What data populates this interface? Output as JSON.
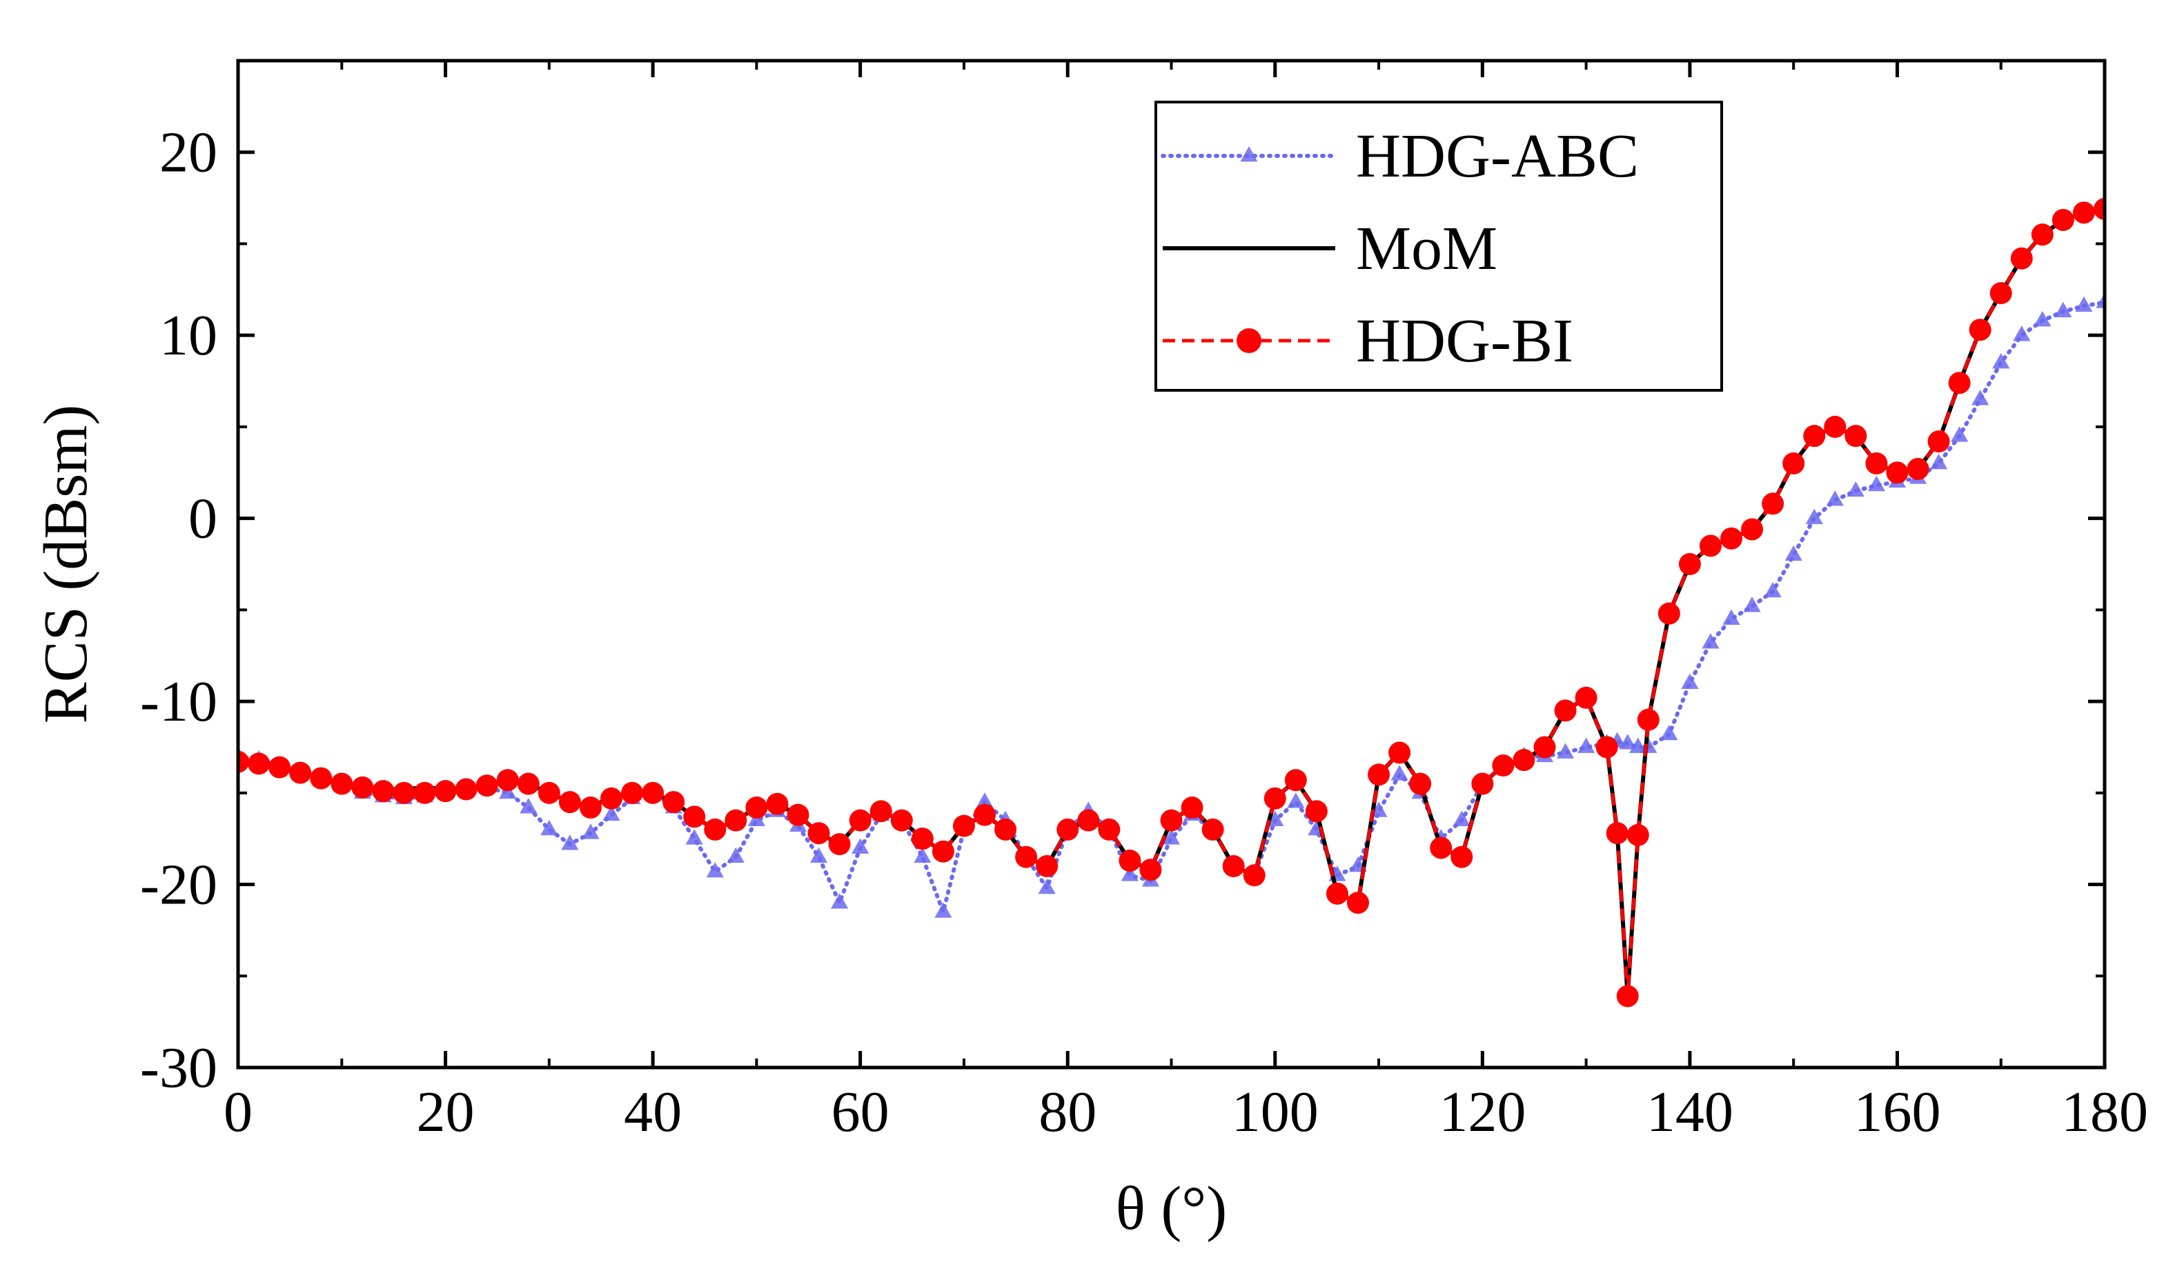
{
  "chart_data": {
    "type": "line",
    "title": "",
    "xlabel": "θ (°)",
    "ylabel": "RCS (dBsm)",
    "xlim": [
      0,
      180
    ],
    "ylim": [
      -30,
      25
    ],
    "xticks": [
      0,
      20,
      40,
      60,
      80,
      100,
      120,
      140,
      160,
      180
    ],
    "xtick_labels": [
      "0",
      "20",
      "40",
      "60",
      "80",
      "100",
      "120",
      "140",
      "160",
      "180"
    ],
    "yticks": [
      -30,
      -20,
      -10,
      0,
      10,
      20
    ],
    "ytick_labels": [
      "-30",
      "-20",
      "-10",
      "0",
      "10",
      "20"
    ],
    "grid": false,
    "legend_position": "top-right",
    "x": [
      0,
      2,
      4,
      6,
      8,
      10,
      12,
      14,
      16,
      18,
      20,
      22,
      24,
      26,
      28,
      30,
      32,
      34,
      36,
      38,
      40,
      42,
      44,
      46,
      48,
      50,
      52,
      54,
      56,
      58,
      60,
      62,
      64,
      66,
      68,
      70,
      72,
      74,
      76,
      78,
      80,
      82,
      84,
      86,
      88,
      90,
      92,
      94,
      96,
      98,
      100,
      102,
      104,
      106,
      108,
      110,
      112,
      114,
      116,
      118,
      120,
      122,
      124,
      126,
      128,
      130,
      132,
      133,
      134,
      135,
      136,
      138,
      140,
      142,
      144,
      146,
      148,
      150,
      152,
      154,
      156,
      158,
      160,
      162,
      164,
      166,
      168,
      170,
      172,
      174,
      176,
      178,
      180
    ],
    "series": [
      {
        "name": "HDG-ABC",
        "color": "#6a6af0",
        "style": "dotted-triangle",
        "values": [
          -13.0,
          -13.2,
          -13.5,
          -13.8,
          -14.2,
          -14.6,
          -15.0,
          -15.2,
          -15.3,
          -15.2,
          -15.0,
          -14.8,
          -14.7,
          -15.0,
          -15.8,
          -17.0,
          -17.8,
          -17.2,
          -16.2,
          -15.3,
          -15.0,
          -15.8,
          -17.5,
          -19.3,
          -18.5,
          -16.5,
          -16.0,
          -16.8,
          -18.5,
          -21.0,
          -18.0,
          -16.2,
          -16.5,
          -18.5,
          -21.5,
          -17.0,
          -15.5,
          -16.5,
          -18.5,
          -20.2,
          -17.0,
          -16.0,
          -17.0,
          -19.5,
          -19.8,
          -17.5,
          -16.2,
          -17.0,
          -19.0,
          -19.5,
          -16.5,
          -15.5,
          -17.0,
          -19.5,
          -19.0,
          -16.0,
          -14.0,
          -15.0,
          -17.5,
          -16.5,
          -14.5,
          -13.5,
          -13.0,
          -13.0,
          -12.8,
          -12.5,
          -12.3,
          -12.2,
          -12.3,
          -12.5,
          -12.5,
          -11.8,
          -9.0,
          -6.8,
          -5.5,
          -4.8,
          -4.0,
          -2.0,
          0.0,
          1.0,
          1.5,
          1.8,
          2.0,
          2.2,
          3.0,
          4.5,
          6.5,
          8.5,
          10.0,
          10.8,
          11.3,
          11.6,
          11.8
        ]
      },
      {
        "name": "MoM",
        "color": "#000000",
        "style": "solid",
        "values": [
          -13.3,
          -13.4,
          -13.6,
          -13.9,
          -14.2,
          -14.5,
          -14.7,
          -14.8,
          -14.8,
          -14.7,
          -14.8,
          -14.8,
          -14.6,
          -14.3,
          -14.5,
          -15.0,
          -15.5,
          -15.7,
          -15.3,
          -15.0,
          -15.0,
          -15.5,
          -16.3,
          -17.0,
          -16.5,
          -15.8,
          -15.6,
          -16.2,
          -17.2,
          -17.8,
          -16.5,
          -16.0,
          -16.5,
          -17.5,
          -18.2,
          -16.8,
          -16.2,
          -17.0,
          -18.5,
          -19.0,
          -17.0,
          -16.5,
          -17.0,
          -18.7,
          -19.2,
          -16.5,
          -15.8,
          -17.0,
          -19.0,
          -19.5,
          -15.3,
          -14.3,
          -16.0,
          -20.5,
          -21.0,
          -14.0,
          -12.8,
          -14.5,
          -18.0,
          -18.5,
          -14.5,
          -13.5,
          -13.2,
          -12.5,
          -10.5,
          -9.8,
          -12.5,
          -17.2,
          -26.1,
          -17.3,
          -11.0,
          -5.2,
          -2.5,
          -1.5,
          -1.1,
          -0.6,
          0.8,
          3.0,
          4.5,
          5.0,
          4.5,
          3.0,
          2.5,
          2.7,
          4.2,
          7.4,
          10.3,
          12.3,
          14.2,
          15.5,
          16.3,
          16.7,
          16.9
        ]
      },
      {
        "name": "HDG-BI",
        "color": "#ff0000",
        "style": "dashed-circle",
        "values": [
          -13.3,
          -13.4,
          -13.6,
          -13.9,
          -14.2,
          -14.5,
          -14.7,
          -14.9,
          -15.0,
          -15.0,
          -14.9,
          -14.8,
          -14.6,
          -14.3,
          -14.5,
          -15.0,
          -15.5,
          -15.8,
          -15.3,
          -15.0,
          -15.0,
          -15.5,
          -16.3,
          -17.0,
          -16.5,
          -15.8,
          -15.6,
          -16.2,
          -17.2,
          -17.8,
          -16.5,
          -16.0,
          -16.5,
          -17.5,
          -18.2,
          -16.8,
          -16.2,
          -17.0,
          -18.5,
          -19.0,
          -17.0,
          -16.5,
          -17.0,
          -18.7,
          -19.2,
          -16.5,
          -15.8,
          -17.0,
          -19.0,
          -19.5,
          -15.3,
          -14.3,
          -16.0,
          -20.5,
          -21.0,
          -14.0,
          -12.8,
          -14.5,
          -18.0,
          -18.5,
          -14.5,
          -13.5,
          -13.2,
          -12.5,
          -10.5,
          -9.8,
          -12.5,
          -17.2,
          -26.1,
          -17.3,
          -11.0,
          -5.2,
          -2.5,
          -1.5,
          -1.1,
          -0.6,
          0.8,
          3.0,
          4.5,
          5.0,
          4.5,
          3.0,
          2.5,
          2.7,
          4.2,
          7.4,
          10.3,
          12.3,
          14.2,
          15.5,
          16.3,
          16.7,
          16.9
        ]
      }
    ]
  }
}
